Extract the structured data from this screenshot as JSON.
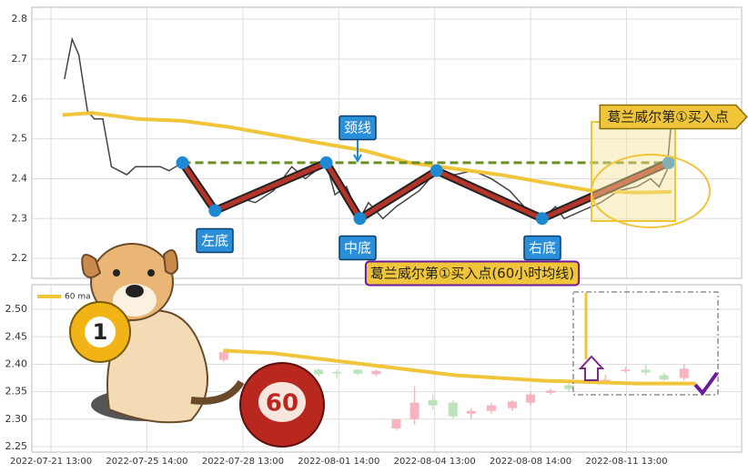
{
  "chart_data": [
    {
      "type": "line",
      "xlim": [
        -2,
        72
      ],
      "ylim": [
        2.15,
        2.83
      ],
      "yticks": [
        2.2,
        2.3,
        2.4,
        2.5,
        2.6,
        2.7,
        2.8
      ],
      "grid": true,
      "lines": [
        {
          "color": "#444444",
          "x": [
            1.4,
            2.2,
            2.9,
            3.8,
            4.5,
            5.4,
            6.3,
            7.9,
            8.8,
            11.4,
            12.3,
            13.7,
            15.1,
            17.1,
            18.5,
            19.9,
            21.3,
            23.2,
            25.1,
            26.5,
            28.7,
            29.6,
            30.8,
            32.2,
            33.1,
            34.6,
            36.0,
            38.4,
            40.2,
            42.1,
            44.0,
            45.9,
            47.8,
            49.7,
            51.2,
            52.6,
            53.5,
            55.4,
            57.3,
            59.2,
            61.1,
            62.5,
            63.4,
            64.2,
            64.7
          ],
          "values": [
            2.65,
            2.75,
            2.71,
            2.57,
            2.55,
            2.55,
            2.43,
            2.41,
            2.43,
            2.43,
            2.42,
            2.44,
            2.4,
            2.32,
            2.34,
            2.35,
            2.34,
            2.37,
            2.43,
            2.4,
            2.44,
            2.36,
            2.38,
            2.3,
            2.34,
            2.3,
            2.33,
            2.37,
            2.42,
            2.41,
            2.42,
            2.4,
            2.37,
            2.32,
            2.3,
            2.33,
            2.3,
            2.32,
            2.34,
            2.37,
            2.38,
            2.4,
            2.38,
            2.42,
            2.55
          ]
        },
        {
          "color": "#f0c53a",
          "x": [
            1.2,
            4.3,
            9.0,
            13.7,
            18.5,
            23.2,
            27.9,
            32.7,
            37.4,
            42.1,
            46.8,
            51.5,
            56.3,
            61.1,
            64.7
          ],
          "values": [
            2.56,
            2.565,
            2.55,
            2.545,
            2.53,
            2.51,
            2.49,
            2.47,
            2.44,
            2.425,
            2.41,
            2.39,
            2.37,
            2.365,
            2.367
          ]
        }
      ],
      "pattern": {
        "color": "#b5342a",
        "point_color": "#1e88d2",
        "x": [
          13.7,
          17.1,
          28.7,
          32.2,
          40.2,
          51.2,
          64.4
        ],
        "values": [
          2.44,
          2.32,
          2.44,
          2.3,
          2.42,
          2.3,
          2.44
        ]
      },
      "neckline": {
        "color": "#6b8e23",
        "x": [
          13.7,
          64.4
        ],
        "values": [
          2.44,
          2.44
        ]
      },
      "annotations": [
        "颈线",
        "左底",
        "中底",
        "右底",
        "葛兰威尔第①买入点",
        "葛兰威尔第①买入点(60小时均线)"
      ]
    },
    {
      "type": "candlestick",
      "xlim": [
        -2,
        72
      ],
      "ylim": [
        2.24,
        2.545
      ],
      "yticks": [
        2.25,
        {
          "value": 2.3,
          "label": "2.30"
        },
        2.35,
        {
          "value": 2.4,
          "label": "2.40"
        },
        2.45,
        {
          "value": 2.5,
          "label": "2.50"
        }
      ],
      "xticks": [
        {
          "value": 0,
          "label": "2022-07-21 13:00"
        },
        {
          "value": 10,
          "label": "2022-07-25 14:00"
        },
        {
          "value": 20,
          "label": "2022-07-28 13:00"
        },
        {
          "value": 30,
          "label": "2022-08-01 14:00"
        },
        {
          "value": 40,
          "label": "2022-08-04 13:00"
        },
        {
          "value": 50,
          "label": "2022-08-08 14:00"
        },
        {
          "value": 60,
          "label": "2022-08-11 13:00"
        }
      ],
      "grid": true,
      "legend": "upper left",
      "up_color": "#f7b3c0",
      "down_color": "#bde3bd",
      "x": [
        18.0,
        27.9,
        29.8,
        32.0,
        33.9,
        36.0,
        37.9,
        39.8,
        41.9,
        43.8,
        45.9,
        48.1,
        50.0,
        52.1,
        54.0,
        57.8,
        59.9,
        62.0,
        63.9,
        66.0
      ],
      "open": [
        2.408,
        2.39,
        2.386,
        2.39,
        2.382,
        2.283,
        2.3,
        2.335,
        2.33,
        2.31,
        2.315,
        2.32,
        2.33,
        2.348,
        2.362,
        2.37,
        2.39,
        2.39,
        2.38,
        2.375
      ],
      "high": [
        2.425,
        2.392,
        2.39,
        2.392,
        2.39,
        2.3,
        2.36,
        2.345,
        2.335,
        2.32,
        2.33,
        2.335,
        2.35,
        2.355,
        2.37,
        2.38,
        2.395,
        2.4,
        2.385,
        2.4
      ],
      "low": [
        2.405,
        2.378,
        2.375,
        2.38,
        2.378,
        2.28,
        2.29,
        2.318,
        2.3,
        2.3,
        2.31,
        2.315,
        2.325,
        2.345,
        2.35,
        2.365,
        2.385,
        2.38,
        2.37,
        2.37
      ],
      "close": [
        2.422,
        2.382,
        2.384,
        2.383,
        2.388,
        2.3,
        2.33,
        2.325,
        2.305,
        2.315,
        2.325,
        2.332,
        2.345,
        2.352,
        2.355,
        2.372,
        2.39,
        2.385,
        2.372,
        2.392
      ],
      "series": [
        {
          "name": "60 ma",
          "color": "#f0c53a",
          "x": [
            18.0,
            23.2,
            32.7,
            42.1,
            51.5,
            61.1,
            67.2
          ],
          "values": [
            2.425,
            2.42,
            2.4,
            2.38,
            2.37,
            2.365,
            2.365
          ]
        }
      ]
    }
  ],
  "illustration": {
    "balls": [
      "1",
      "60"
    ]
  }
}
